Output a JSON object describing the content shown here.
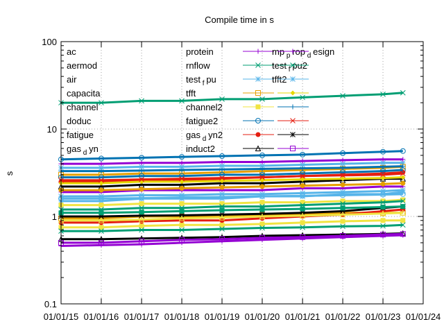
{
  "chart_data": {
    "type": "line",
    "title": "Compile time in s",
    "xlabel": "",
    "ylabel": "s",
    "y_scale": "log",
    "ylim": [
      0.1,
      100
    ],
    "xlim": [
      "2015-01-01",
      "2024-01-01"
    ],
    "y_ticks": [
      {
        "value": 0.1,
        "label": "0.1"
      },
      {
        "value": 1,
        "label": "1"
      },
      {
        "value": 10,
        "label": "10"
      },
      {
        "value": 100,
        "label": "100"
      }
    ],
    "x_ticks": [
      {
        "value": "2015-01-01",
        "label": "01/01/15"
      },
      {
        "value": "2016-01-01",
        "label": "01/01/16"
      },
      {
        "value": "2017-01-01",
        "label": "01/01/17"
      },
      {
        "value": "2018-01-01",
        "label": "01/01/18"
      },
      {
        "value": "2019-01-01",
        "label": "01/01/19"
      },
      {
        "value": "2020-01-01",
        "label": "01/01/20"
      },
      {
        "value": "2021-01-01",
        "label": "01/01/21"
      },
      {
        "value": "2022-01-01",
        "label": "01/01/22"
      },
      {
        "value": "2023-01-01",
        "label": "01/01/23"
      },
      {
        "value": "2024-01-01",
        "label": "01/01/24"
      }
    ],
    "grid": true,
    "legend_position": "top-left, three columns",
    "series": [
      {
        "name": "ac",
        "color": "#9400d3",
        "marker": "plus",
        "x": [
          "2015-01-01",
          "2016-01-01",
          "2017-01-01",
          "2018-01-01",
          "2019-01-01",
          "2020-01-01",
          "2021-01-01",
          "2022-01-01",
          "2023-01-01",
          "2023-07-01"
        ],
        "y": [
          1.9,
          1.9,
          2.0,
          2.0,
          2.0,
          2.0,
          2.1,
          2.1,
          2.2,
          2.2
        ]
      },
      {
        "name": "aermod",
        "color": "#009e73",
        "marker": "x",
        "x": [
          "2015-01-01",
          "2016-01-01",
          "2017-01-01",
          "2018-01-01",
          "2019-01-01",
          "2020-01-01",
          "2021-01-01",
          "2022-01-01",
          "2023-01-01",
          "2023-07-01"
        ],
        "y": [
          20,
          20,
          21,
          21,
          22,
          22,
          23,
          24,
          25,
          26
        ]
      },
      {
        "name": "air",
        "color": "#56b4e9",
        "marker": "star",
        "x": [
          "2015-01-01",
          "2016-01-01",
          "2017-01-01",
          "2018-01-01",
          "2019-01-01",
          "2020-01-01",
          "2021-01-01",
          "2022-01-01",
          "2023-01-01",
          "2023-07-01"
        ],
        "y": [
          1.5,
          1.5,
          1.6,
          1.6,
          1.6,
          1.7,
          1.7,
          1.8,
          1.8,
          1.9
        ]
      },
      {
        "name": "capacita",
        "color": "#e69f00",
        "marker": "square",
        "x": [
          "2015-01-01",
          "2016-01-01",
          "2017-01-01",
          "2018-01-01",
          "2019-01-01",
          "2020-01-01",
          "2021-01-01",
          "2022-01-01",
          "2023-01-01",
          "2023-07-01"
        ],
        "y": [
          0.95,
          0.95,
          1.0,
          1.0,
          1.0,
          1.05,
          1.05,
          1.1,
          1.1,
          1.1
        ]
      },
      {
        "name": "channel",
        "color": "#f0e442",
        "marker": "filled-square",
        "x": [
          "2015-01-01",
          "2016-01-01",
          "2017-01-01",
          "2018-01-01",
          "2019-01-01",
          "2020-01-01",
          "2021-01-01",
          "2022-01-01",
          "2023-01-01",
          "2023-07-01"
        ],
        "y": [
          0.75,
          0.75,
          0.78,
          0.8,
          0.8,
          0.82,
          0.85,
          0.88,
          0.9,
          0.9
        ]
      },
      {
        "name": "doduc",
        "color": "#0072b2",
        "marker": "circle",
        "x": [
          "2015-01-01",
          "2016-01-01",
          "2017-01-01",
          "2018-01-01",
          "2019-01-01",
          "2020-01-01",
          "2021-01-01",
          "2022-01-01",
          "2023-01-01",
          "2023-07-01"
        ],
        "y": [
          4.5,
          4.6,
          4.7,
          4.8,
          4.9,
          5.0,
          5.1,
          5.3,
          5.5,
          5.6
        ]
      },
      {
        "name": "fatigue",
        "color": "#e51e10",
        "marker": "filled-circle",
        "x": [
          "2015-01-01",
          "2016-01-01",
          "2017-01-01",
          "2018-01-01",
          "2019-01-01",
          "2020-01-01",
          "2021-01-01",
          "2022-01-01",
          "2023-01-01",
          "2023-07-01"
        ],
        "y": [
          2.5,
          2.5,
          2.6,
          2.6,
          2.7,
          2.8,
          2.9,
          3.0,
          3.1,
          3.2
        ]
      },
      {
        "name": "gas_dyn",
        "color": "#000000",
        "marker": "triangle",
        "x": [
          "2015-01-01",
          "2016-01-01",
          "2017-01-01",
          "2018-01-01",
          "2019-01-01",
          "2020-01-01",
          "2021-01-01",
          "2022-01-01",
          "2023-01-01",
          "2023-07-01"
        ],
        "y": [
          0.55,
          0.55,
          0.56,
          0.57,
          0.58,
          0.6,
          0.61,
          0.62,
          0.63,
          0.64
        ]
      },
      {
        "name": "protein",
        "color": "#9400d3",
        "marker": "plus",
        "x": [
          "2015-01-01",
          "2016-01-01",
          "2017-01-01",
          "2018-01-01",
          "2019-01-01",
          "2020-01-01",
          "2021-01-01",
          "2022-01-01",
          "2023-01-01",
          "2023-07-01"
        ],
        "y": [
          0.46,
          0.47,
          0.48,
          0.5,
          0.52,
          0.54,
          0.56,
          0.58,
          0.6,
          0.61
        ]
      },
      {
        "name": "rnflow",
        "color": "#009e73",
        "marker": "x",
        "x": [
          "2015-01-01",
          "2016-01-01",
          "2017-01-01",
          "2018-01-01",
          "2019-01-01",
          "2020-01-01",
          "2021-01-01",
          "2022-01-01",
          "2023-01-01",
          "2023-07-01"
        ],
        "y": [
          0.68,
          0.68,
          0.7,
          0.7,
          0.72,
          0.74,
          0.75,
          0.77,
          0.78,
          0.8
        ]
      },
      {
        "name": "test_fpu",
        "color": "#56b4e9",
        "marker": "star",
        "x": [
          "2015-01-01",
          "2016-01-01",
          "2017-01-01",
          "2018-01-01",
          "2019-01-01",
          "2020-01-01",
          "2021-01-01",
          "2022-01-01",
          "2023-01-01",
          "2023-07-01"
        ],
        "y": [
          3.6,
          3.6,
          3.7,
          3.7,
          3.8,
          3.8,
          3.9,
          4.0,
          4.1,
          4.1
        ]
      },
      {
        "name": "tfft",
        "color": "#e69f00",
        "marker": "square",
        "x": [
          "2015-01-01",
          "2016-01-01",
          "2017-01-01",
          "2018-01-01",
          "2019-01-01",
          "2020-01-01",
          "2021-01-01",
          "2022-01-01",
          "2023-01-01",
          "2023-07-01"
        ],
        "y": [
          3.0,
          3.0,
          3.1,
          3.1,
          3.2,
          3.3,
          3.4,
          3.5,
          3.6,
          3.7
        ]
      },
      {
        "name": "channel2",
        "color": "#f0e442",
        "marker": "filled-square",
        "x": [
          "2015-01-01",
          "2016-01-01",
          "2017-01-01",
          "2018-01-01",
          "2019-01-01",
          "2020-01-01",
          "2021-01-01",
          "2022-01-01",
          "2023-01-01",
          "2023-07-01"
        ],
        "y": [
          1.35,
          1.35,
          1.4,
          1.4,
          1.4,
          1.45,
          1.45,
          1.5,
          1.5,
          1.55
        ]
      },
      {
        "name": "fatigue2",
        "color": "#0072b2",
        "marker": "circle",
        "x": [
          "2015-01-01",
          "2016-01-01",
          "2017-01-01",
          "2018-01-01",
          "2019-01-01",
          "2020-01-01",
          "2021-01-01",
          "2022-01-01",
          "2023-01-01",
          "2023-07-01"
        ],
        "y": [
          2.8,
          2.8,
          2.9,
          2.9,
          3.0,
          3.0,
          3.1,
          3.2,
          3.3,
          3.4
        ]
      },
      {
        "name": "gas_dyn2",
        "color": "#e51e10",
        "marker": "filled-circle",
        "x": [
          "2015-01-01",
          "2016-01-01",
          "2017-01-01",
          "2018-01-01",
          "2019-01-01",
          "2020-01-01",
          "2021-01-01",
          "2022-01-01",
          "2023-01-01",
          "2023-07-01"
        ],
        "y": [
          0.85,
          0.85,
          0.88,
          0.9,
          0.9,
          0.95,
          1.0,
          1.05,
          1.15,
          1.2
        ]
      },
      {
        "name": "induct2",
        "color": "#000000",
        "marker": "triangle",
        "x": [
          "2015-01-01",
          "2016-01-01",
          "2017-01-01",
          "2018-01-01",
          "2019-01-01",
          "2020-01-01",
          "2021-01-01",
          "2022-01-01",
          "2023-01-01",
          "2023-07-01"
        ],
        "y": [
          2.2,
          2.2,
          2.3,
          2.3,
          2.4,
          2.4,
          2.5,
          2.6,
          2.7,
          2.7
        ]
      },
      {
        "name": "mp_prop_design",
        "color": "#9400d3",
        "marker": "plus",
        "x": [
          "2015-01-01",
          "2016-01-01",
          "2017-01-01",
          "2018-01-01",
          "2019-01-01",
          "2020-01-01",
          "2021-01-01",
          "2022-01-01",
          "2023-01-01",
          "2023-07-01"
        ],
        "y": [
          4.0,
          4.0,
          4.1,
          4.1,
          4.2,
          4.2,
          4.3,
          4.4,
          4.5,
          4.5
        ]
      },
      {
        "name": "test_fpu2",
        "color": "#009e73",
        "marker": "x",
        "x": [
          "2015-01-01",
          "2016-01-01",
          "2017-01-01",
          "2018-01-01",
          "2019-01-01",
          "2020-01-01",
          "2021-01-01",
          "2022-01-01",
          "2023-01-01",
          "2023-07-01"
        ],
        "y": [
          1.2,
          1.2,
          1.25,
          1.25,
          1.3,
          1.3,
          1.35,
          1.4,
          1.45,
          1.5
        ]
      },
      {
        "name": "tfft2",
        "color": "#56b4e9",
        "marker": "star",
        "x": [
          "2015-01-01",
          "2016-01-01",
          "2017-01-01",
          "2018-01-01",
          "2019-01-01",
          "2020-01-01",
          "2021-01-01",
          "2022-01-01",
          "2023-01-01",
          "2023-07-01"
        ],
        "y": [
          1.7,
          1.7,
          1.75,
          1.75,
          1.8,
          1.8,
          1.85,
          1.9,
          1.95,
          2.0
        ]
      },
      {
        "name": "",
        "color": "#e6d800",
        "marker": "diamond",
        "x": [
          "2015-01-01",
          "2016-01-01",
          "2017-01-01",
          "2018-01-01",
          "2019-01-01",
          "2020-01-01",
          "2021-01-01",
          "2022-01-01",
          "2023-01-01",
          "2023-07-01"
        ],
        "y": [
          2.4,
          2.4,
          2.5,
          2.5,
          2.55,
          2.6,
          2.65,
          2.7,
          2.75,
          2.8
        ]
      },
      {
        "name": "",
        "color": "#0072b2",
        "marker": "plus",
        "x": [
          "2015-01-01",
          "2016-01-01",
          "2017-01-01",
          "2018-01-01",
          "2019-01-01",
          "2020-01-01",
          "2021-01-01",
          "2022-01-01",
          "2023-01-01",
          "2023-07-01"
        ],
        "y": [
          3.3,
          3.3,
          3.35,
          3.4,
          3.45,
          3.5,
          3.55,
          3.6,
          3.7,
          3.75
        ]
      },
      {
        "name": "",
        "color": "#e51e10",
        "marker": "x",
        "x": [
          "2015-01-01",
          "2016-01-01",
          "2017-01-01",
          "2018-01-01",
          "2019-01-01",
          "2020-01-01",
          "2021-01-01",
          "2022-01-01",
          "2023-01-01",
          "2023-07-01"
        ],
        "y": [
          2.6,
          2.6,
          2.65,
          2.7,
          2.75,
          2.8,
          2.9,
          2.95,
          3.0,
          3.1
        ]
      },
      {
        "name": "",
        "color": "#000000",
        "marker": "star",
        "x": [
          "2015-01-01",
          "2016-01-01",
          "2017-01-01",
          "2018-01-01",
          "2019-01-01",
          "2020-01-01",
          "2021-01-01",
          "2022-01-01",
          "2023-01-01",
          "2023-07-01"
        ],
        "y": [
          1.0,
          1.0,
          1.02,
          1.03,
          1.05,
          1.07,
          1.1,
          1.15,
          1.25,
          1.3
        ]
      },
      {
        "name": "",
        "color": "#9400d3",
        "marker": "square",
        "x": [
          "2015-01-01",
          "2016-01-01",
          "2017-01-01",
          "2018-01-01",
          "2019-01-01",
          "2020-01-01",
          "2021-01-01",
          "2022-01-01",
          "2023-01-01",
          "2023-07-01"
        ],
        "y": [
          0.5,
          0.5,
          0.52,
          0.54,
          0.55,
          0.57,
          0.58,
          0.6,
          0.62,
          0.63
        ]
      },
      {
        "name": "",
        "color": "#009e73",
        "marker": "filled-square",
        "x": [
          "2015-01-01",
          "2016-01-01",
          "2017-01-01",
          "2018-01-01",
          "2019-01-01",
          "2020-01-01",
          "2021-01-01",
          "2022-01-01",
          "2023-01-01",
          "2023-07-01"
        ],
        "y": [
          1.1,
          1.1,
          1.12,
          1.15,
          1.18,
          1.2,
          1.22,
          1.25,
          1.28,
          1.3
        ]
      },
      {
        "name": "",
        "color": "#56b4e9",
        "marker": "circle",
        "x": [
          "2015-01-01",
          "2016-01-01",
          "2017-01-01",
          "2018-01-01",
          "2019-01-01",
          "2020-01-01",
          "2021-01-01",
          "2022-01-01",
          "2023-01-01",
          "2023-07-01"
        ],
        "y": [
          1.6,
          1.6,
          1.62,
          1.65,
          1.67,
          1.7,
          1.72,
          1.75,
          1.78,
          1.8
        ]
      },
      {
        "name": "",
        "color": "#e69f00",
        "marker": "filled-circle",
        "x": [
          "2015-01-01",
          "2016-01-01",
          "2017-01-01",
          "2018-01-01",
          "2019-01-01",
          "2020-01-01",
          "2021-01-01",
          "2022-01-01",
          "2023-01-01",
          "2023-07-01"
        ],
        "y": [
          2.0,
          2.0,
          2.05,
          2.1,
          2.15,
          2.2,
          2.25,
          2.3,
          2.35,
          2.4
        ]
      },
      {
        "name": "",
        "color": "#f0e442",
        "marker": "triangle",
        "x": [
          "2015-01-01",
          "2016-01-01",
          "2017-01-01",
          "2018-01-01",
          "2019-01-01",
          "2020-01-01",
          "2021-01-01",
          "2022-01-01",
          "2023-01-01",
          "2023-07-01"
        ],
        "y": [
          0.9,
          0.9,
          0.92,
          0.95,
          0.97,
          1.0,
          1.02,
          1.05,
          1.08,
          1.1
        ]
      }
    ]
  }
}
